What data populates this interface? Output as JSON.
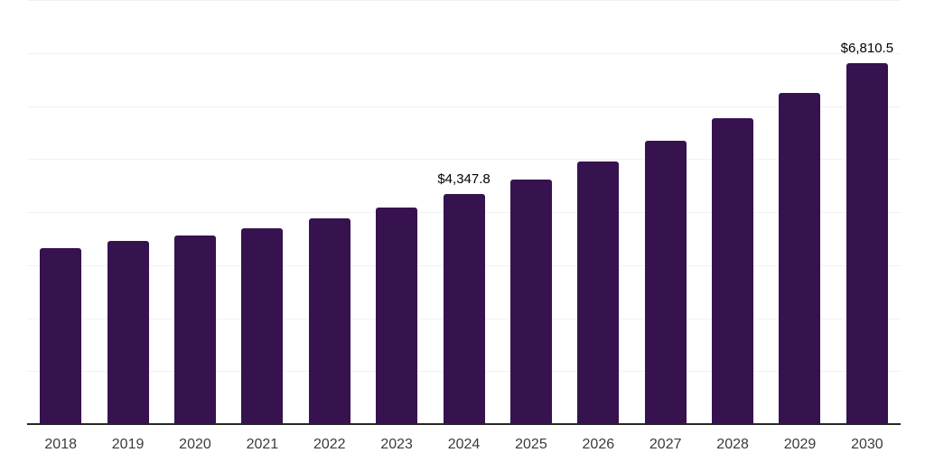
{
  "chart_data": {
    "type": "bar",
    "title": "",
    "xlabel": "",
    "ylabel": "",
    "categories": [
      "2018",
      "2019",
      "2020",
      "2021",
      "2022",
      "2023",
      "2024",
      "2025",
      "2026",
      "2027",
      "2028",
      "2029",
      "2030"
    ],
    "values": [
      3320,
      3460,
      3560,
      3700,
      3890,
      4090,
      4347.8,
      4620,
      4950,
      5350,
      5770,
      6250,
      6810.5
    ],
    "labeled_points": [
      {
        "category": "2024",
        "value": 4347.8,
        "label": "$4,347.8"
      },
      {
        "category": "2030",
        "value": 6810.5,
        "label": "$6,810.5"
      }
    ],
    "ylim": [
      0,
      8000
    ],
    "grid_interval": 1000,
    "gridlines": "horizontal",
    "y_tick_labels_shown": false,
    "legend_position": "none",
    "colors": {
      "bar": "#36124F",
      "axis_line": "#262626",
      "gridline": "#f2f2f2",
      "tick_label": "#3b3b3b",
      "value_label": "#000000",
      "background": "#ffffff"
    }
  }
}
